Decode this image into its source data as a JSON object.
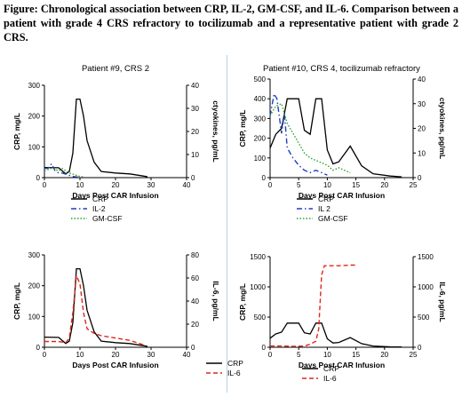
{
  "caption": "Figure: Chronological association between CRP, IL-2, GM-CSF, and IL-6. Comparison between a patient with grade 4 CRS refractory to tocilizumab and a representative patient with grade 2 CRS.",
  "chart_data": [
    {
      "type": "line",
      "title": "Patient #9, CRS 2",
      "xlabel": "Days Post CAR Infusion",
      "ylabel": "CRP, mg/L",
      "y2label": "ctyokines, pg/mL",
      "xlim": [
        0,
        40
      ],
      "ylim": [
        0,
        300
      ],
      "y2lim": [
        0,
        40
      ],
      "xticks": [
        "0",
        "10",
        "20",
        "30",
        "40"
      ],
      "yticks": [
        "0",
        "100",
        "200",
        "300"
      ],
      "y2ticks": [
        "0",
        "10",
        "20",
        "30",
        "40"
      ],
      "series": [
        {
          "name": "CRP",
          "axis": "left",
          "color": "#000000",
          "dash": "solid",
          "x": [
            0,
            4,
            6,
            7,
            8,
            9,
            10,
            11,
            12,
            14,
            16,
            20,
            24,
            28,
            29
          ],
          "y": [
            33,
            32,
            12,
            20,
            80,
            255,
            255,
            200,
            120,
            50,
            20,
            15,
            12,
            5,
            3
          ]
        },
        {
          "name": "IL-2",
          "axis": "right",
          "color": "#1f3fbf",
          "dash": "dashdot",
          "x": [
            0,
            1,
            2,
            3,
            4,
            5,
            6,
            7,
            8,
            9,
            10
          ],
          "y": [
            4,
            4,
            6,
            3,
            2,
            2,
            1.5,
            1,
            0.5,
            0.3,
            0.2
          ]
        },
        {
          "name": "GM-CSF",
          "axis": "right",
          "color": "#2e9e2e",
          "dash": "dotted",
          "x": [
            0,
            1,
            2,
            3,
            4,
            5,
            6,
            7,
            8,
            9,
            10,
            11
          ],
          "y": [
            3,
            3.5,
            4,
            3.5,
            3,
            4,
            3,
            2,
            1.5,
            1,
            0.5,
            0.3
          ]
        }
      ]
    },
    {
      "type": "line",
      "title": "Patient #10, CRS 4, tocilizumab refractory",
      "xlabel": "Days Post CAR Infusion",
      "ylabel": "CRP, mg/L",
      "y2label": "ctyokines, pg/mL",
      "xlim": [
        0,
        25
      ],
      "ylim": [
        0,
        500
      ],
      "y2lim": [
        0,
        40
      ],
      "xticks": [
        "0",
        "5",
        "10",
        "15",
        "20",
        "25"
      ],
      "yticks": [
        "0",
        "100",
        "200",
        "300",
        "400",
        "500"
      ],
      "y2ticks": [
        "0",
        "10",
        "20",
        "30",
        "40"
      ],
      "series": [
        {
          "name": "CRP",
          "axis": "left",
          "color": "#000000",
          "dash": "solid",
          "x": [
            0,
            1,
            2,
            3,
            4,
            5,
            6,
            7,
            8,
            9,
            10,
            11,
            12,
            14,
            16,
            18,
            21,
            23
          ],
          "y": [
            150,
            220,
            250,
            400,
            400,
            400,
            240,
            220,
            400,
            400,
            140,
            70,
            80,
            160,
            60,
            20,
            8,
            4
          ]
        },
        {
          "name": "IL 2",
          "axis": "right",
          "color": "#1f3fbf",
          "dash": "dashdot",
          "x": [
            0,
            0.7,
            1.2,
            2,
            2.5,
            3,
            4,
            5,
            6,
            7,
            8,
            9,
            10
          ],
          "y": [
            25,
            34,
            32,
            18,
            26,
            12,
            8,
            5,
            3,
            2,
            3,
            2,
            1
          ]
        },
        {
          "name": "GM-CSF",
          "axis": "right",
          "color": "#2e9e2e",
          "dash": "dotted",
          "x": [
            0,
            1,
            2,
            3,
            4,
            5,
            6,
            7,
            8,
            9,
            10,
            11,
            12,
            13,
            14
          ],
          "y": [
            25,
            29,
            30,
            22,
            18,
            14,
            10,
            8,
            7,
            6,
            5,
            3,
            4,
            3,
            2
          ]
        }
      ]
    },
    {
      "type": "line",
      "title": "",
      "xlabel": "Days Post CAR Infusion",
      "ylabel": "CRP, mg/L",
      "y2label": "IL-6, pg/mL",
      "xlim": [
        0,
        40
      ],
      "ylim": [
        0,
        300
      ],
      "y2lim": [
        0,
        80
      ],
      "xticks": [
        "0",
        "10",
        "20",
        "30",
        "40"
      ],
      "yticks": [
        "0",
        "100",
        "200",
        "300"
      ],
      "y2ticks": [
        "0",
        "20",
        "40",
        "60",
        "80"
      ],
      "series": [
        {
          "name": "CRP",
          "axis": "left",
          "color": "#000000",
          "dash": "solid",
          "x": [
            0,
            4,
            6,
            7,
            8,
            9,
            10,
            11,
            12,
            14,
            16,
            20,
            24,
            28,
            29
          ],
          "y": [
            33,
            32,
            12,
            20,
            80,
            255,
            255,
            200,
            120,
            50,
            20,
            15,
            12,
            5,
            3
          ]
        },
        {
          "name": "IL-6",
          "axis": "right",
          "color": "#e0261c",
          "dash": "dashed",
          "x": [
            0,
            3,
            4,
            6,
            7,
            8,
            9,
            10,
            11,
            12,
            14,
            16,
            20,
            24,
            28
          ],
          "y": [
            5,
            5,
            5,
            4,
            8,
            30,
            62,
            55,
            30,
            16,
            12,
            10,
            8,
            6,
            2
          ]
        }
      ]
    },
    {
      "type": "line",
      "title": "",
      "xlabel": "Days Post CAR Infusion",
      "ylabel": "CRP, mg/L",
      "y2label": "IL-6, pg/mL",
      "xlim": [
        0,
        25
      ],
      "ylim": [
        0,
        1500
      ],
      "y2lim": [
        0,
        1500
      ],
      "xticks": [
        "0",
        "5",
        "10",
        "15",
        "20",
        "25"
      ],
      "yticks": [
        "0",
        "500",
        "1000",
        "1500"
      ],
      "y2ticks": [
        "0",
        "500",
        "1000",
        "1500"
      ],
      "series": [
        {
          "name": "CRP",
          "axis": "left",
          "color": "#000000",
          "dash": "solid",
          "x": [
            0,
            1,
            2,
            3,
            4,
            5,
            6,
            7,
            8,
            9,
            10,
            11,
            12,
            14,
            16,
            18,
            21,
            23
          ],
          "y": [
            150,
            220,
            250,
            400,
            400,
            400,
            240,
            220,
            400,
            400,
            140,
            70,
            80,
            160,
            60,
            20,
            8,
            4
          ]
        },
        {
          "name": "IL-6",
          "axis": "right",
          "color": "#e0261c",
          "dash": "dashed",
          "x": [
            0,
            2,
            4,
            6,
            7,
            8,
            8.5,
            9,
            9.5,
            10,
            12,
            14,
            15
          ],
          "y": [
            20,
            20,
            15,
            20,
            50,
            100,
            300,
            1200,
            1350,
            1350,
            1350,
            1360,
            1360
          ]
        }
      ]
    }
  ]
}
